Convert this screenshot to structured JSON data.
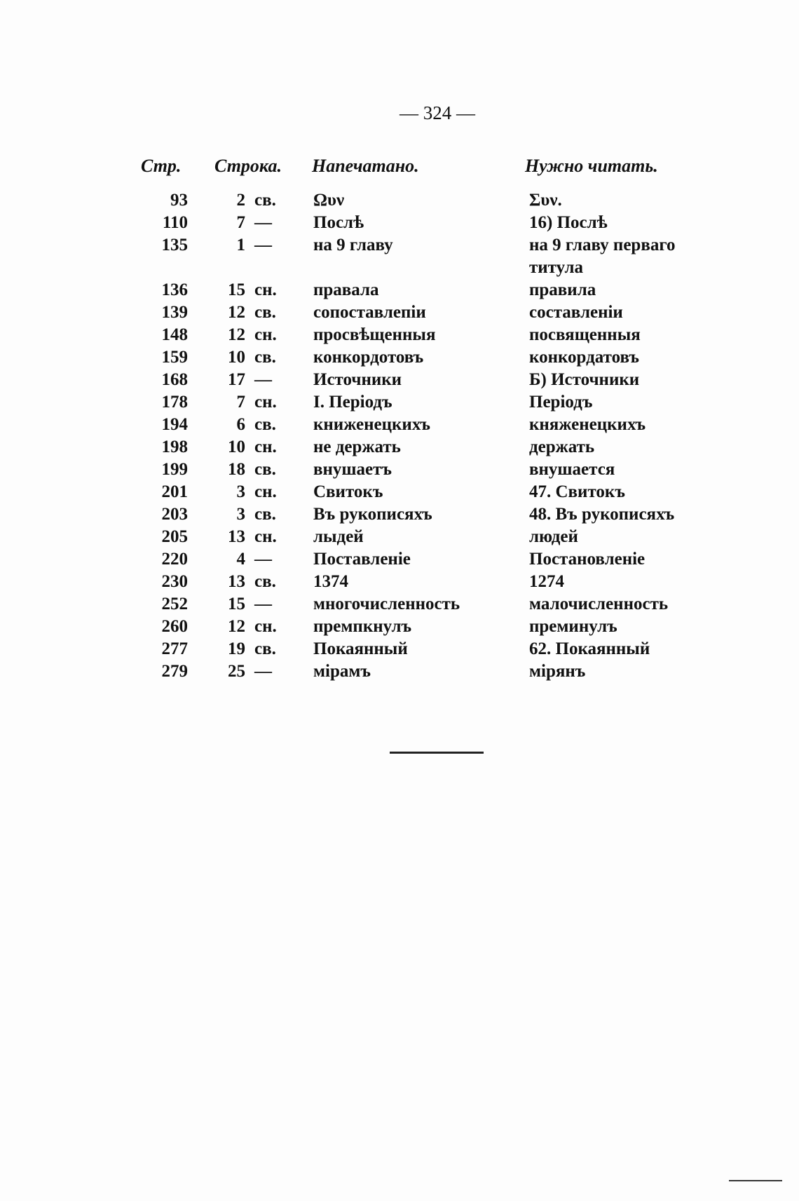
{
  "page_number": "— 324 —",
  "headers": {
    "page": "Стр.",
    "line": "Строка.",
    "printed": "Напечатано.",
    "correct": "Нужно читать."
  },
  "rows": [
    {
      "page": "93",
      "line": "2",
      "dir": "св.",
      "printed": "Ωυν",
      "correct": "Συν."
    },
    {
      "page": "110",
      "line": "7",
      "dir": "—",
      "printed": "Послѣ",
      "correct": "16) Послѣ"
    },
    {
      "page": "135",
      "line": "1",
      "dir": "—",
      "printed": "на 9 главу",
      "correct": "на 9 главу перваго",
      "correct_cont": "титула"
    },
    {
      "page": "136",
      "line": "15",
      "dir": "сн.",
      "printed": "правала",
      "correct": "правила"
    },
    {
      "page": "139",
      "line": "12",
      "dir": "св.",
      "printed": "сопоставлепіи",
      "correct": "составленіи"
    },
    {
      "page": "148",
      "line": "12",
      "dir": "сн.",
      "printed": "просвѣщенныя",
      "correct": "посвященныя"
    },
    {
      "page": "159",
      "line": "10",
      "dir": "св.",
      "printed": "конкордотовъ",
      "correct": "конкордатовъ"
    },
    {
      "page": "168",
      "line": "17",
      "dir": "—",
      "printed": "Источники",
      "correct": "Б) Источники"
    },
    {
      "page": "178",
      "line": "7",
      "dir": "сн.",
      "printed": "I. Періодъ",
      "correct": "Періодъ"
    },
    {
      "page": "194",
      "line": "6",
      "dir": "св.",
      "printed": "книженецкихъ",
      "correct": "княженецкихъ"
    },
    {
      "page": "198",
      "line": "10",
      "dir": "сн.",
      "printed": "не держать",
      "correct": "держать"
    },
    {
      "page": "199",
      "line": "18",
      "dir": "св.",
      "printed": "внушаетъ",
      "correct": "внушается"
    },
    {
      "page": "201",
      "line": "3",
      "dir": "сн.",
      "printed": "Свитокъ",
      "correct": "47. Свитокъ"
    },
    {
      "page": "203",
      "line": "3",
      "dir": "св.",
      "printed": "Въ рукописяхъ",
      "correct": "48. Въ рукописяхъ"
    },
    {
      "page": "205",
      "line": "13",
      "dir": "сн.",
      "printed": "лыдей",
      "correct": "людей"
    },
    {
      "page": "220",
      "line": "4",
      "dir": "—",
      "printed": "Поставленіе",
      "correct": "Постановленіе"
    },
    {
      "page": "230",
      "line": "13",
      "dir": "св.",
      "printed": "1374",
      "correct": "1274"
    },
    {
      "page": "252",
      "line": "15",
      "dir": "—",
      "printed": "многочисленность",
      "correct": "малочисленность"
    },
    {
      "page": "260",
      "line": "12",
      "dir": "сн.",
      "printed": "премпкнулъ",
      "correct": "преминулъ"
    },
    {
      "page": "277",
      "line": "19",
      "dir": "св.",
      "printed": "Покаянный",
      "correct": "62. Покаянный"
    },
    {
      "page": "279",
      "line": "25",
      "dir": "—",
      "printed": "мірамъ",
      "correct": "мірянъ"
    }
  ]
}
